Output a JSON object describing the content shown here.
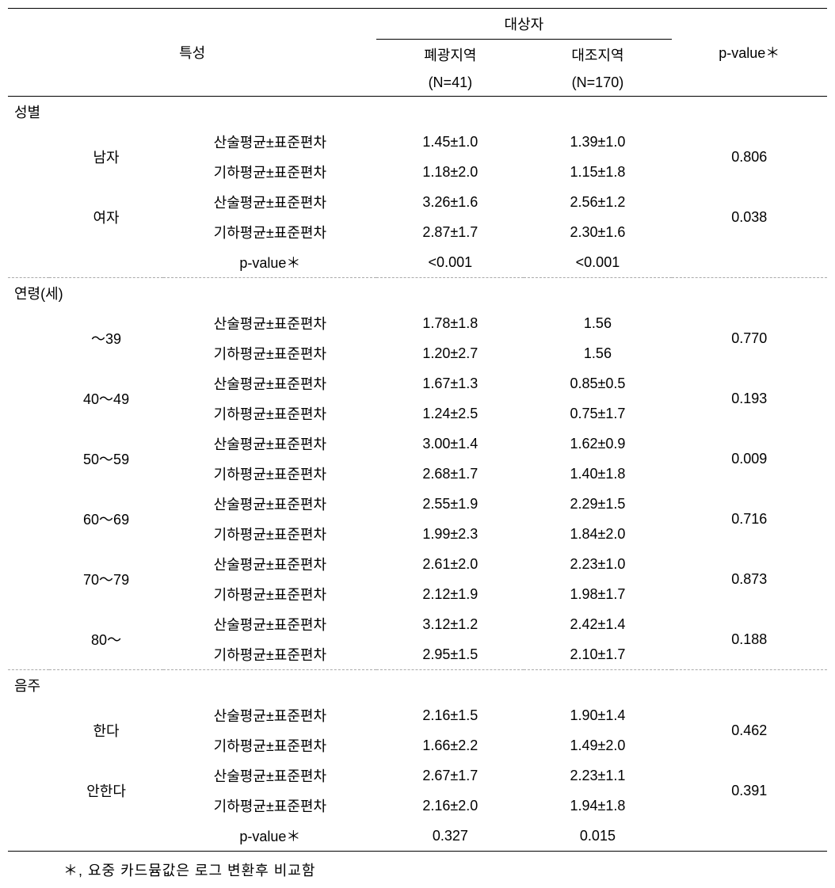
{
  "header": {
    "characteristic": "특성",
    "subjects": "대상자",
    "group1_label": "폐광지역",
    "group1_n": "(N=41)",
    "group2_label": "대조지역",
    "group2_n": "(N=170)",
    "pvalue": "p-value＊"
  },
  "labels": {
    "arithmetic": "산술평균±표준편차",
    "geometric": "기하평균±표준편차",
    "pvalue_row": "p-value＊"
  },
  "sections": [
    {
      "title": "성별",
      "rows": [
        {
          "category": "남자",
          "arith_g1": "1.45±1.0",
          "arith_g2": "1.39±1.0",
          "geo_g1": "1.18±2.0",
          "geo_g2": "1.15±1.8",
          "pvalue": "0.806"
        },
        {
          "category": "여자",
          "arith_g1": "3.26±1.6",
          "arith_g2": "2.56±1.2",
          "geo_g1": "2.87±1.7",
          "geo_g2": "2.30±1.6",
          "pvalue": "0.038"
        }
      ],
      "pvalue_row": {
        "g1": "<0.001",
        "g2": "<0.001"
      }
    },
    {
      "title": "연령(세)",
      "rows": [
        {
          "category": "～39",
          "arith_g1": "1.78±1.8",
          "arith_g2": "1.56",
          "geo_g1": "1.20±2.7",
          "geo_g2": "1.56",
          "pvalue": "0.770"
        },
        {
          "category": "40～49",
          "arith_g1": "1.67±1.3",
          "arith_g2": "0.85±0.5",
          "geo_g1": "1.24±2.5",
          "geo_g2": "0.75±1.7",
          "pvalue": "0.193"
        },
        {
          "category": "50～59",
          "arith_g1": "3.00±1.4",
          "arith_g2": "1.62±0.9",
          "geo_g1": "2.68±1.7",
          "geo_g2": "1.40±1.8",
          "pvalue": "0.009"
        },
        {
          "category": "60～69",
          "arith_g1": "2.55±1.9",
          "arith_g2": "2.29±1.5",
          "geo_g1": "1.99±2.3",
          "geo_g2": "1.84±2.0",
          "pvalue": "0.716"
        },
        {
          "category": "70～79",
          "arith_g1": "2.61±2.0",
          "arith_g2": "2.23±1.0",
          "geo_g1": "2.12±1.9",
          "geo_g2": "1.98±1.7",
          "pvalue": "0.873"
        },
        {
          "category": "80～",
          "arith_g1": "3.12±1.2",
          "arith_g2": "2.42±1.4",
          "geo_g1": "2.95±1.5",
          "geo_g2": "2.10±1.7",
          "pvalue": "0.188"
        }
      ]
    },
    {
      "title": "음주",
      "rows": [
        {
          "category": "한다",
          "arith_g1": "2.16±1.5",
          "arith_g2": "1.90±1.4",
          "geo_g1": "1.66±2.2",
          "geo_g2": "1.49±2.0",
          "pvalue": "0.462"
        },
        {
          "category": "안한다",
          "arith_g1": "2.67±1.7",
          "arith_g2": "2.23±1.1",
          "geo_g1": "2.16±2.0",
          "geo_g2": "1.94±1.8",
          "pvalue": "0.391"
        }
      ],
      "pvalue_row": {
        "g1": "0.327",
        "g2": "0.015"
      }
    }
  ],
  "footnote": "＊, 요중 카드뮴값은 로그 변환후 비교함"
}
